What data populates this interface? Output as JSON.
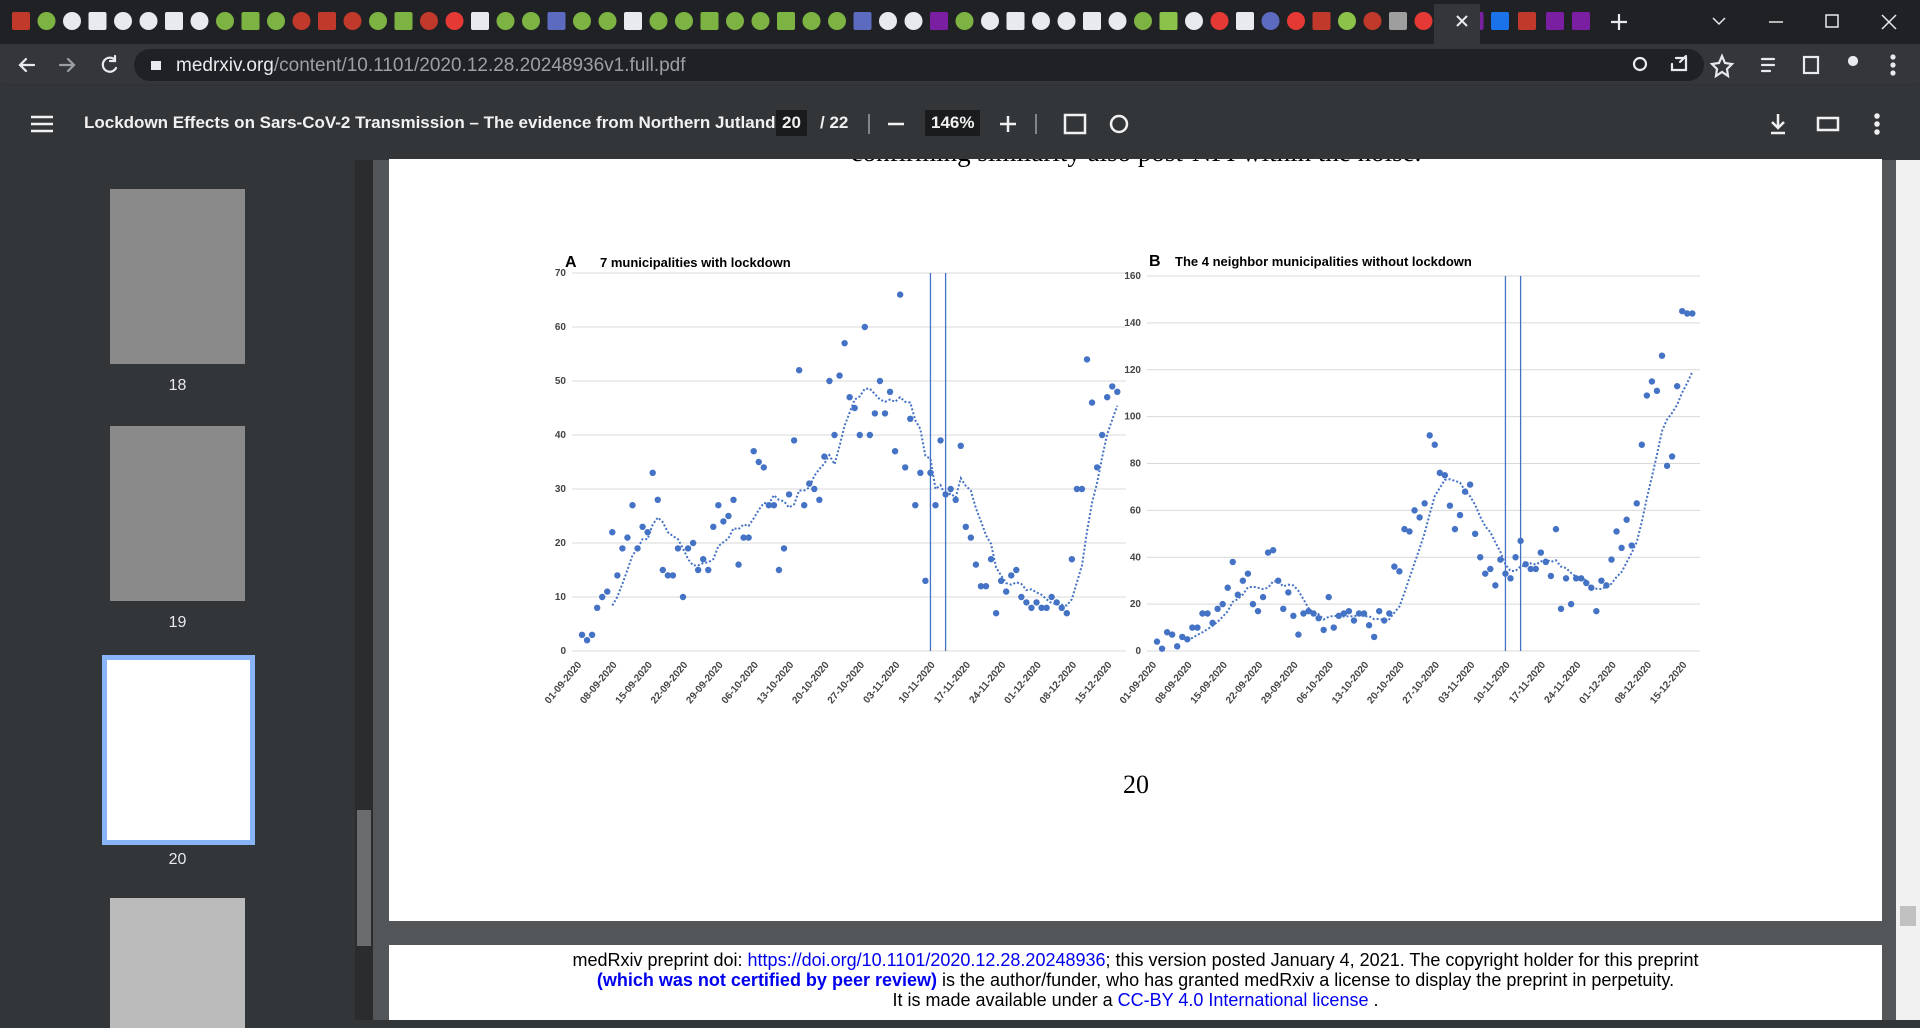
{
  "browser": {
    "url_host": "medrxiv.org",
    "url_path": "/content/10.1101/2020.12.28.20248936v1.full.pdf"
  },
  "toolbar": {
    "title": "Lockdown Effects on Sars-CoV-2 Transmission – The evidence from Northern Jutland",
    "page": "20",
    "page_count": "/ 22",
    "zoom": "146%"
  },
  "thumbnails": [
    "18",
    "19",
    "20"
  ],
  "document": {
    "cut_text": "confirming similarity also post-NPI within the noise.",
    "page_number": "20",
    "footer": {
      "line1_pre": "medRxiv preprint doi: ",
      "doi": "https://doi.org/10.1101/2020.12.28.20248936",
      "line1_post": "; this version posted January 4, 2021. The copyright holder for this preprint",
      "line2_bold": "(which was not certified by peer review)",
      "line2_post": " is the author/funder, who has granted medRxiv a license to display the preprint in perpetuity.",
      "line3_pre": "It is made available under a ",
      "license": "CC-BY 4.0 International license",
      "line3_post": " ."
    }
  },
  "chart_data": [
    {
      "type": "scatter",
      "label": "A",
      "title": "7 municipalities with lockdown",
      "categories": [
        "01-09-2020",
        null,
        null,
        null,
        null,
        null,
        null,
        "08-09-2020",
        null,
        null,
        null,
        null,
        null,
        null,
        "15-09-2020",
        null,
        null,
        null,
        null,
        null,
        null,
        "22-09-2020",
        null,
        null,
        null,
        null,
        null,
        null,
        "29-09-2020",
        null,
        null,
        null,
        null,
        null,
        null,
        "06-10-2020",
        null,
        null,
        null,
        null,
        null,
        null,
        "13-10-2020",
        null,
        null,
        null,
        null,
        null,
        null,
        "20-10-2020",
        null,
        null,
        null,
        null,
        null,
        null,
        "27-10-2020",
        null,
        null,
        null,
        null,
        null,
        null,
        "03-11-2020",
        null,
        null,
        null,
        null,
        null,
        null,
        "10-11-2020",
        null,
        null,
        null,
        null,
        null,
        null,
        "17-11-2020",
        null,
        null,
        null,
        null,
        null,
        null,
        "24-11-2020",
        null,
        null,
        null,
        null,
        null,
        null,
        "01-12-2020",
        null,
        null,
        null,
        null,
        null,
        null,
        "08-12-2020",
        null,
        null,
        null,
        null,
        null,
        null,
        "15-12-2020",
        null
      ],
      "values": [
        3,
        2,
        3,
        8,
        10,
        11,
        22,
        14,
        19,
        21,
        27,
        19,
        23,
        22,
        33,
        28,
        15,
        14,
        14,
        19,
        10,
        19,
        20,
        15,
        17,
        15,
        23,
        27,
        24,
        25,
        28,
        16,
        21,
        21,
        37,
        35,
        34,
        27,
        27,
        15,
        19,
        29,
        39,
        52,
        27,
        31,
        30,
        28,
        36,
        50,
        40,
        51,
        57,
        47,
        45,
        40,
        60,
        40,
        44,
        50,
        44,
        48,
        37,
        66,
        34,
        43,
        27,
        33,
        13,
        33,
        27,
        39,
        29,
        30,
        28,
        38,
        23,
        21,
        16,
        12,
        12,
        17,
        7,
        13,
        11,
        14,
        15,
        10,
        9,
        8,
        9,
        8,
        8,
        10,
        9,
        8,
        7,
        17,
        30,
        30,
        54,
        46,
        34,
        40,
        47,
        49,
        48
      ],
      "color": "#4472c4",
      "ylim": [
        0,
        70
      ],
      "yticks": [
        0,
        10,
        20,
        30,
        40,
        50,
        60,
        70
      ],
      "grid": true,
      "vlines": [
        69,
        72
      ],
      "trendline": true
    },
    {
      "type": "scatter",
      "label": "B",
      "title": "The 4 neighbor municipalities without lockdown",
      "categories": [
        "01-09-2020",
        null,
        null,
        null,
        null,
        null,
        null,
        "08-09-2020",
        null,
        null,
        null,
        null,
        null,
        null,
        "15-09-2020",
        null,
        null,
        null,
        null,
        null,
        null,
        "22-09-2020",
        null,
        null,
        null,
        null,
        null,
        null,
        "29-09-2020",
        null,
        null,
        null,
        null,
        null,
        null,
        "06-10-2020",
        null,
        null,
        null,
        null,
        null,
        null,
        "13-10-2020",
        null,
        null,
        null,
        null,
        null,
        null,
        "20-10-2020",
        null,
        null,
        null,
        null,
        null,
        null,
        "27-10-2020",
        null,
        null,
        null,
        null,
        null,
        null,
        "03-11-2020",
        null,
        null,
        null,
        null,
        null,
        null,
        "10-11-2020",
        null,
        null,
        null,
        null,
        null,
        null,
        "17-11-2020",
        null,
        null,
        null,
        null,
        null,
        null,
        "24-11-2020",
        null,
        null,
        null,
        null,
        null,
        null,
        "01-12-2020",
        null,
        null,
        null,
        null,
        null,
        null,
        "08-12-2020",
        null,
        null,
        null,
        null,
        null,
        null,
        "15-12-2020",
        null
      ],
      "values": [
        4,
        1,
        8,
        7,
        2,
        6,
        5,
        10,
        10,
        16,
        16,
        12,
        18,
        20,
        27,
        38,
        24,
        30,
        33,
        20,
        17,
        23,
        42,
        43,
        30,
        18,
        25,
        15,
        7,
        16,
        17,
        16,
        14,
        9,
        23,
        10,
        15,
        16,
        17,
        13,
        16,
        16,
        11,
        6,
        17,
        13,
        16,
        36,
        34,
        52,
        51,
        60,
        57,
        63,
        92,
        88,
        76,
        75,
        62,
        52,
        58,
        68,
        71,
        50,
        40,
        33,
        35,
        28,
        39,
        33,
        31,
        40,
        47,
        37,
        35,
        35,
        42,
        38,
        32,
        52,
        18,
        31,
        20,
        31,
        31,
        29,
        27,
        17,
        30,
        28,
        39,
        51,
        44,
        56,
        45,
        63,
        88,
        109,
        115,
        111,
        126,
        79,
        83,
        113,
        145,
        144,
        144
      ],
      "color": "#4472c4",
      "ylim": [
        0,
        160
      ],
      "yticks": [
        0,
        20,
        40,
        60,
        80,
        100,
        120,
        140,
        160
      ],
      "grid": true,
      "vlines": [
        69,
        72
      ],
      "trendline": true
    }
  ]
}
